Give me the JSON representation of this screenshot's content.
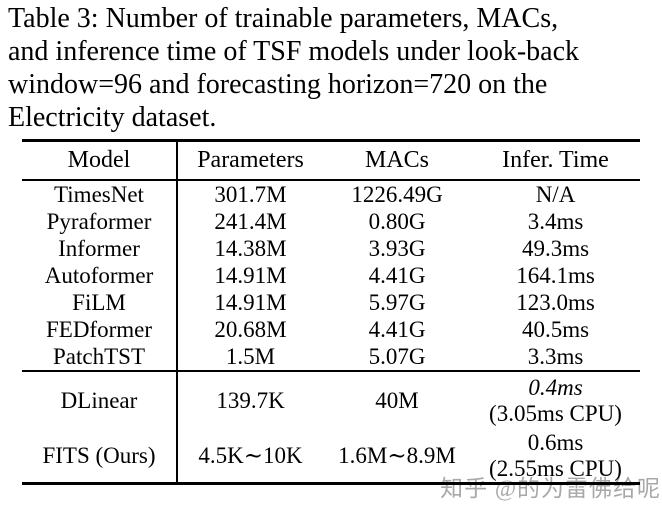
{
  "caption": {
    "lines": [
      "Table 3: Number of trainable parameters, MACs,",
      "and inference time of TSF models under look-back",
      "window=96 and forecasting horizon=720 on the",
      "Electricity dataset."
    ]
  },
  "table": {
    "headers": [
      "Model",
      "Parameters",
      "MACs",
      "Infer. Time"
    ],
    "rows": [
      {
        "model": "TimesNet",
        "parameters": "301.7M",
        "macs": "1226.49G",
        "infer_time": "N/A"
      },
      {
        "model": "Pyraformer",
        "parameters": "241.4M",
        "macs": "0.80G",
        "infer_time": "3.4ms"
      },
      {
        "model": "Informer",
        "parameters": "14.38M",
        "macs": "3.93G",
        "infer_time": "49.3ms"
      },
      {
        "model": "Autoformer",
        "parameters": "14.91M",
        "macs": "4.41G",
        "infer_time": "164.1ms"
      },
      {
        "model": "FiLM",
        "parameters": "14.91M",
        "macs": "5.97G",
        "infer_time": "123.0ms"
      },
      {
        "model": "FEDformer",
        "parameters": "20.68M",
        "macs": "4.41G",
        "infer_time": "40.5ms"
      },
      {
        "model": "PatchTST",
        "parameters": "1.5M",
        "macs": "5.07G",
        "infer_time": "3.3ms"
      }
    ],
    "special_rows": [
      {
        "model": "DLinear",
        "parameters": "139.7K",
        "macs": "40M",
        "infer_time_line1": "0.4ms",
        "infer_time_line2": "(3.05ms CPU)"
      },
      {
        "model": "FITS (Ours)",
        "parameters": "4.5K∼10K",
        "macs": "1.6M∼8.9M",
        "infer_time_line1": "0.6ms",
        "infer_time_line2": "(2.55ms CPU)"
      }
    ]
  },
  "watermark": {
    "text": "知乎 @的为雷佛给呢",
    "color": "#a8a8a8"
  }
}
